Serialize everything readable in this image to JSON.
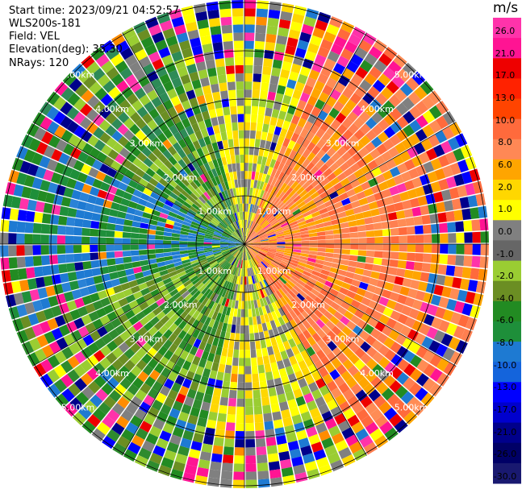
{
  "header": {
    "start_time": "Start time: 2023/09/21 04:52:57",
    "instrument": "WLS200s-181",
    "field": "Field: VEL",
    "elevation": "Elevation(deg): 35.30",
    "nrays": "NRays: 120"
  },
  "range_labels": [
    "1.00km",
    "2.00km",
    "3.00km",
    "4.00km",
    "5.00km"
  ],
  "colorbar": {
    "unit": "m/s",
    "ticks": [
      "26.0",
      "21.0",
      "17.0",
      "13.0",
      "10.0",
      "8.0",
      "6.0",
      "2.0",
      "1.0",
      "0.0",
      "-1.0",
      "-2.0",
      "-4.0",
      "-6.0",
      "-8.0",
      "-10.0",
      "-13.0",
      "-17.0",
      "-21.0",
      "-26.0",
      "-30.0"
    ],
    "colors": [
      "#ff33aa",
      "#ff1493",
      "#ee0000",
      "#ff2200",
      "#ff4400",
      "#ff6a3c",
      "#ff8855",
      "#ffa500",
      "#ffd700",
      "#ffff00",
      "#808080",
      "#666666",
      "#9acd32",
      "#6b8e23",
      "#228b22",
      "#1e8f3a",
      "#1e7ad2",
      "#1464dc",
      "#0000ff",
      "#0000cd",
      "#00008b",
      "#000066",
      "#191970"
    ]
  }
}
